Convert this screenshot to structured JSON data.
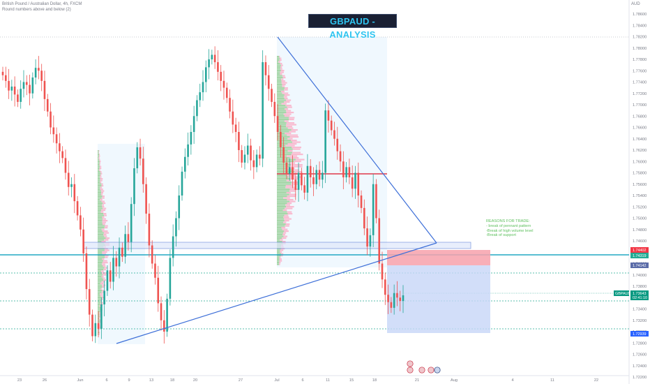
{
  "header": {
    "symbol_line": "British Pound / Australian Dollar, 4h, FXCM",
    "sub_line": "Round numbers above and below (2)",
    "currency": "AUD"
  },
  "title_badge": "GBPAUD - ANALYSIS",
  "reasons": {
    "heading": "REASONS FOR TRADE:",
    "items": [
      "- break of pennant pattern",
      "-Break of high volume level",
      "-Break of support"
    ]
  },
  "chart_data": {
    "type": "candlestick",
    "instrument": "GBPAUD",
    "timeframe": "4h",
    "y_axis_ticks": [
      "1.78600",
      "1.78400",
      "1.78200",
      "1.78000",
      "1.77800",
      "1.77600",
      "1.77400",
      "1.77200",
      "1.77000",
      "1.76800",
      "1.76600",
      "1.76400",
      "1.76200",
      "1.76000",
      "1.75800",
      "1.75600",
      "1.75400",
      "1.75200",
      "1.75000",
      "1.74800",
      "1.74600",
      "1.74400",
      "1.74200",
      "1.74000",
      "1.73800",
      "1.73600",
      "1.73400",
      "1.73200",
      "1.73000",
      "1.72800",
      "1.72600",
      "1.72400",
      "1.72200"
    ],
    "ylim": [
      1.7216,
      1.7872
    ],
    "x_axis_ticks": [
      "23",
      "26",
      "Jun",
      "6",
      "9",
      "13",
      "18",
      "20",
      "27",
      "Jul",
      "6",
      "11",
      "15",
      "18",
      "21",
      "Aug",
      "4",
      "11",
      "22"
    ],
    "price_labels": [
      {
        "name": "level-1",
        "text": "1.74402",
        "color": "#f23645"
      },
      {
        "name": "level-2",
        "text": "1.74319",
        "color": "#22ab94"
      },
      {
        "name": "level-3",
        "text": "1.74142",
        "color": "#5b6ca8"
      },
      {
        "name": "current",
        "symbol": "GBPAUD",
        "text": "1.73643",
        "countdown": "02:41:10",
        "color": "#089981"
      },
      {
        "name": "target",
        "text": "1.72939",
        "color": "#2962ff"
      }
    ],
    "close_series": [
      1.7752,
      1.7742,
      1.7725,
      1.7732,
      1.7718,
      1.7705,
      1.7728,
      1.774,
      1.7735,
      1.772,
      1.7748,
      1.7765,
      1.776,
      1.7742,
      1.771,
      1.7688,
      1.766,
      1.7648,
      1.7632,
      1.7618,
      1.7606,
      1.758,
      1.7555,
      1.756,
      1.753,
      1.7505,
      1.748,
      1.7438,
      1.7375,
      1.733,
      1.7292,
      1.7315,
      1.7305,
      1.7348,
      1.7372,
      1.7408,
      1.7388,
      1.743,
      1.7415,
      1.7448,
      1.7432,
      1.7472,
      1.7458,
      1.7525,
      1.7588,
      1.7625,
      1.7605,
      1.756,
      1.7508,
      1.7452,
      1.742,
      1.7395,
      1.735,
      1.732,
      1.73,
      1.7358,
      1.743,
      1.7468,
      1.75,
      1.754,
      1.7582,
      1.7608,
      1.763,
      1.7652,
      1.768,
      1.7708,
      1.7722,
      1.774,
      1.7766,
      1.778,
      1.7788,
      1.7775,
      1.7758,
      1.7742,
      1.773,
      1.7712,
      1.7688,
      1.7665,
      1.7652,
      1.762,
      1.7598,
      1.7612,
      1.7628,
      1.7602,
      1.759,
      1.7612,
      1.7605,
      1.7775,
      1.7752,
      1.7728,
      1.7705,
      1.768,
      1.7652,
      1.7625,
      1.7598,
      1.7578,
      1.759,
      1.7568,
      1.755,
      1.758,
      1.7558,
      1.7545,
      1.7592,
      1.7572,
      1.756,
      1.7585,
      1.7568,
      1.758,
      1.769,
      1.7672,
      1.7655,
      1.764,
      1.7618,
      1.76,
      1.7572,
      1.759,
      1.7572,
      1.7552,
      1.758,
      1.754,
      1.7518,
      1.7482,
      1.745,
      1.747,
      1.756,
      1.75,
      1.742,
      1.7392,
      1.7365,
      1.7352,
      1.7342,
      1.7368,
      1.736,
      1.7354,
      1.7364
    ]
  }
}
